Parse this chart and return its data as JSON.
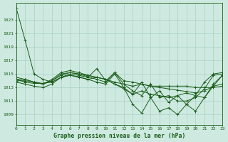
{
  "background_color": "#ceeae0",
  "plot_bg_color": "#ceeae0",
  "line_color": "#1a5c1a",
  "grid_color": "#aacfc4",
  "xlabel": "Graphe pression niveau de la mer (hPa)",
  "yticks": [
    1009,
    1011,
    1013,
    1015,
    1017,
    1019,
    1021,
    1023
  ],
  "xticks": [
    0,
    1,
    2,
    3,
    4,
    5,
    6,
    7,
    8,
    9,
    10,
    11,
    12,
    13,
    14,
    15,
    16,
    17,
    18,
    19,
    20,
    21,
    22,
    23
  ],
  "ylim": [
    1007.5,
    1025.5
  ],
  "xlim": [
    0,
    23
  ],
  "series1": [
    1024.8,
    1020.0,
    1015.0,
    1014.2,
    1013.8,
    1014.5,
    1015.0,
    1014.8,
    1014.5,
    1015.8,
    1014.0,
    1015.2,
    1014.0,
    1013.8,
    1013.5,
    1013.2,
    1013.0,
    1012.8,
    1012.6,
    1012.4,
    1012.2,
    1012.5,
    1013.2,
    1014.8
  ],
  "series2": [
    1014.2,
    1013.8,
    1013.6,
    1013.6,
    1013.8,
    1014.5,
    1014.8,
    1014.6,
    1014.2,
    1014.5,
    1014.2,
    1013.8,
    1013.5,
    1013.2,
    1013.5,
    1013.2,
    1013.2,
    1013.2,
    1013.2,
    1013.2,
    1013.0,
    1013.0,
    1013.0,
    1013.2
  ],
  "series3": [
    1014.0,
    1014.0,
    1013.8,
    1013.6,
    1014.0,
    1014.8,
    1015.2,
    1015.0,
    1014.8,
    1014.5,
    1014.2,
    1013.5,
    1012.8,
    1012.0,
    1012.5,
    1012.0,
    1011.8,
    1011.5,
    1011.8,
    1012.2,
    1011.8,
    1013.8,
    1015.0,
    1015.2
  ],
  "series4": [
    1014.2,
    1014.2,
    1013.8,
    1013.5,
    1014.0,
    1015.0,
    1015.2,
    1015.0,
    1014.6,
    1014.2,
    1013.8,
    1015.2,
    1013.5,
    1012.5,
    1011.8,
    1013.5,
    1011.5,
    1011.8,
    1011.0,
    1011.0,
    1011.5,
    1012.8,
    1014.8,
    1015.0
  ],
  "series5": [
    1014.5,
    1014.2,
    1013.8,
    1013.5,
    1014.2,
    1015.2,
    1015.5,
    1015.2,
    1014.8,
    1014.5,
    1014.2,
    1013.5,
    1013.0,
    1012.0,
    1013.8,
    1011.5,
    1012.5,
    1010.8,
    1011.8,
    1010.5,
    1011.8,
    1011.5,
    1013.5,
    1014.8
  ],
  "series6_osc": [
    1013.8,
    1013.5,
    1013.2,
    1013.0,
    1013.5,
    1014.5,
    1014.8,
    1014.5,
    1014.2,
    1013.8,
    1013.5,
    1015.0,
    1013.0,
    1010.5,
    1009.2,
    1011.5,
    1009.5,
    1010.0,
    1009.0,
    1010.5,
    1009.5,
    1011.5,
    1013.2,
    1013.5
  ]
}
